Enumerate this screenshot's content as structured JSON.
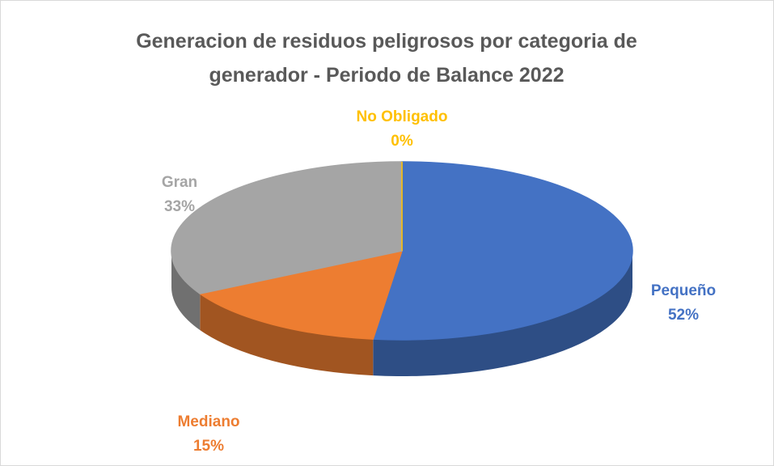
{
  "chart_data": {
    "type": "pie3d",
    "title": "Generacion de residuos peligrosos por categoria de generador - Periodo de Balance 2022",
    "categories": [
      "Pequeño",
      "Mediano",
      "Gran",
      "No Obligado"
    ],
    "values": [
      52,
      15,
      33,
      0
    ],
    "value_labels": [
      "52%",
      "15%",
      "33%",
      "0%"
    ],
    "colors": [
      "#4472c4",
      "#ed7d31",
      "#a5a5a5",
      "#ffc000"
    ]
  }
}
